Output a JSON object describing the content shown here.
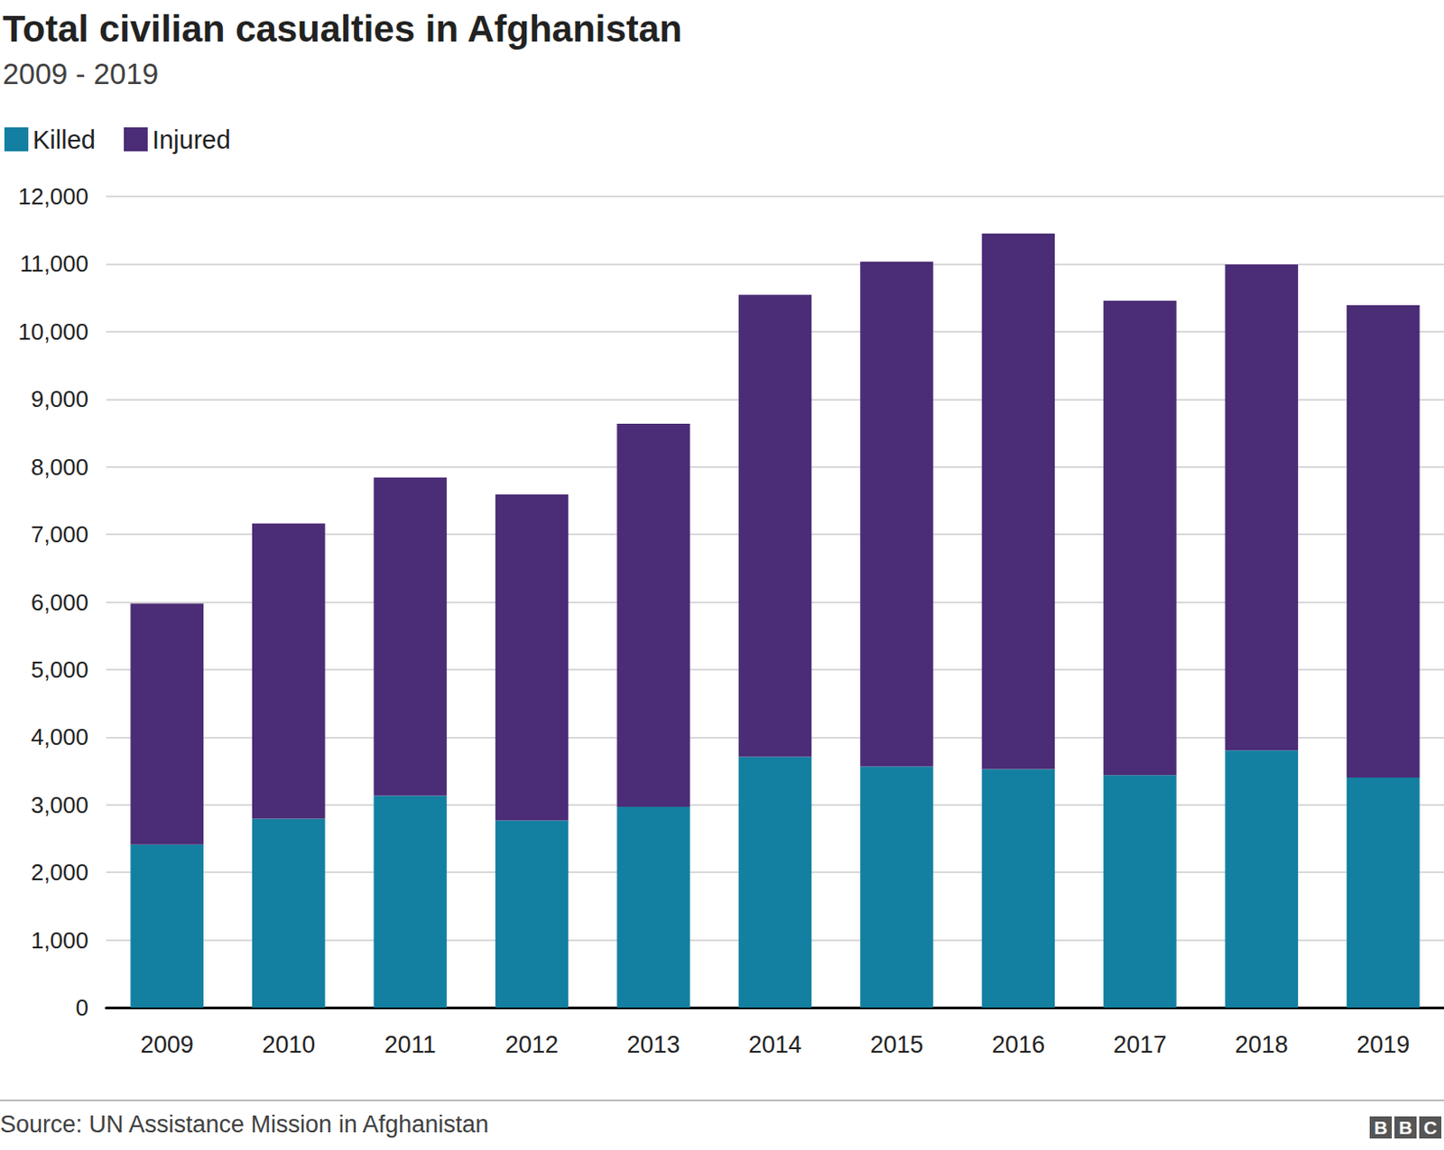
{
  "chart_data": {
    "type": "bar",
    "title": "Total civilian casualties in Afghanistan",
    "subtitle": "2009 - 2019",
    "categories": [
      "2009",
      "2010",
      "2011",
      "2012",
      "2013",
      "2014",
      "2015",
      "2016",
      "2017",
      "2018",
      "2019"
    ],
    "series": [
      {
        "name": "Killed",
        "color": "#1380a1",
        "values": [
          2412,
          2794,
          3133,
          2769,
          2969,
          3710,
          3565,
          3527,
          3440,
          3804,
          3403
        ]
      },
      {
        "name": "Injured",
        "color": "#4b2c76",
        "values": [
          3566,
          4368,
          4709,
          4821,
          5669,
          6834,
          7470,
          7925,
          7015,
          7189,
          6989
        ]
      }
    ],
    "stacked": true,
    "ylim": [
      0,
      12000
    ],
    "yticks": [
      0,
      {
        "value": 1000,
        "label": "1,000"
      },
      {
        "value": 2000,
        "label": "2,000"
      },
      {
        "value": 3000,
        "label": "3,000"
      },
      {
        "value": 4000,
        "label": "4,000"
      },
      {
        "value": 5000,
        "label": "5,000"
      },
      {
        "value": 6000,
        "label": "6,000"
      },
      {
        "value": 7000,
        "label": "7,000"
      },
      {
        "value": 8000,
        "label": "8,000"
      },
      {
        "value": 9000,
        "label": "9,000"
      },
      {
        "value": 10000,
        "label": "10,000"
      },
      {
        "value": 11000,
        "label": "11,000"
      },
      {
        "value": 12000,
        "label": "12,000"
      }
    ],
    "grid": true,
    "legend": "top-left",
    "source": "Source: UN Assistance Mission in Afghanistan",
    "logo": "BBC"
  }
}
